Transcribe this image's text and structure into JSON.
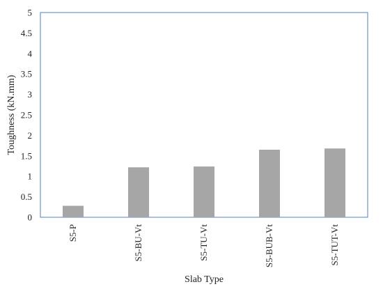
{
  "chart_data": {
    "type": "bar",
    "title": "",
    "xlabel": "Slab Type",
    "ylabel": "Toughness (kN.mm)",
    "categories": [
      "S5-P",
      "S5-BU-Vt",
      "S5-TU-Vt",
      "S5-BUB-Vt",
      "S5-TUT-Vt"
    ],
    "values": [
      0.28,
      1.22,
      1.24,
      1.65,
      1.68
    ],
    "ylim": [
      0,
      5
    ],
    "yticks": [
      0,
      0.5,
      1,
      1.5,
      2,
      2.5,
      3,
      3.5,
      4,
      4.5,
      5
    ],
    "grid": false,
    "legend": "none",
    "bar_color": "#a6a6a6",
    "frame_color": "#4f81bd"
  }
}
